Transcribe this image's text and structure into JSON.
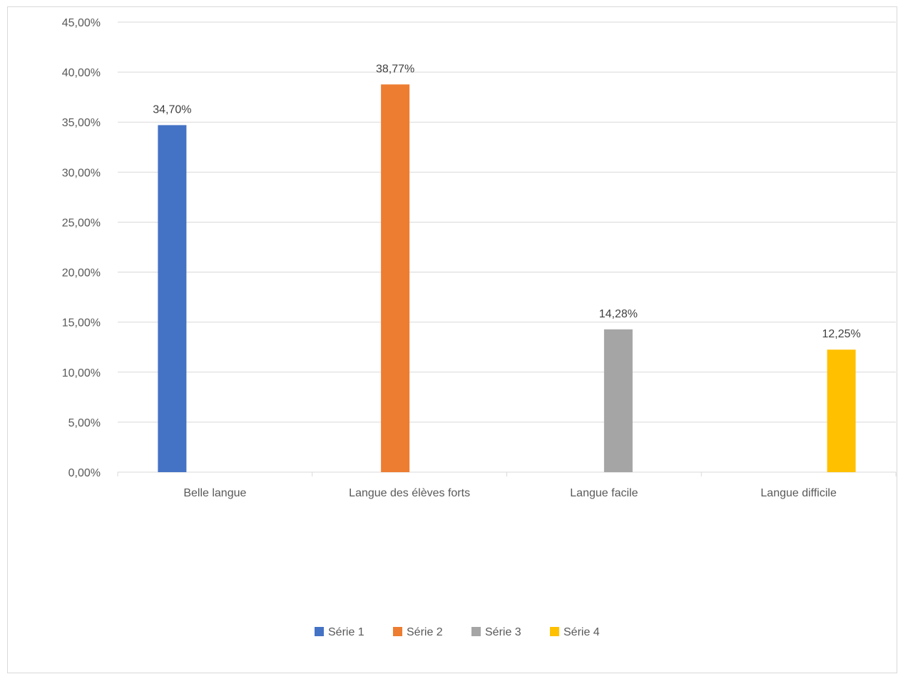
{
  "chart_data": {
    "type": "bar",
    "categories": [
      "Belle langue",
      "Langue des élèves forts",
      "Langue facile",
      "Langue difficile"
    ],
    "series": [
      {
        "name": "Série 1",
        "color": "#4472c4",
        "values": [
          34.7,
          null,
          null,
          null
        ],
        "labels": [
          "34,70%",
          "",
          "",
          ""
        ]
      },
      {
        "name": "Série 2",
        "color": "#ed7d31",
        "values": [
          null,
          38.77,
          null,
          null
        ],
        "labels": [
          "",
          "38,77%",
          "",
          ""
        ]
      },
      {
        "name": "Série 3",
        "color": "#a5a5a5",
        "values": [
          null,
          null,
          14.28,
          null
        ],
        "labels": [
          "",
          "",
          "14,28%",
          ""
        ]
      },
      {
        "name": "Série 4",
        "color": "#ffc000",
        "values": [
          null,
          null,
          null,
          12.25
        ],
        "labels": [
          "",
          "",
          "",
          "12,25%"
        ]
      }
    ],
    "ylim": [
      0,
      45
    ],
    "yticks": [
      0,
      5,
      10,
      15,
      20,
      25,
      30,
      35,
      40,
      45
    ],
    "ytick_labels": [
      "0,00%",
      "5,00%",
      "10,00%",
      "15,00%",
      "20,00%",
      "25,00%",
      "30,00%",
      "35,00%",
      "40,00%",
      "45,00%"
    ],
    "grid": true,
    "legend_position": "bottom",
    "title": "",
    "xlabel": "",
    "ylabel": ""
  }
}
